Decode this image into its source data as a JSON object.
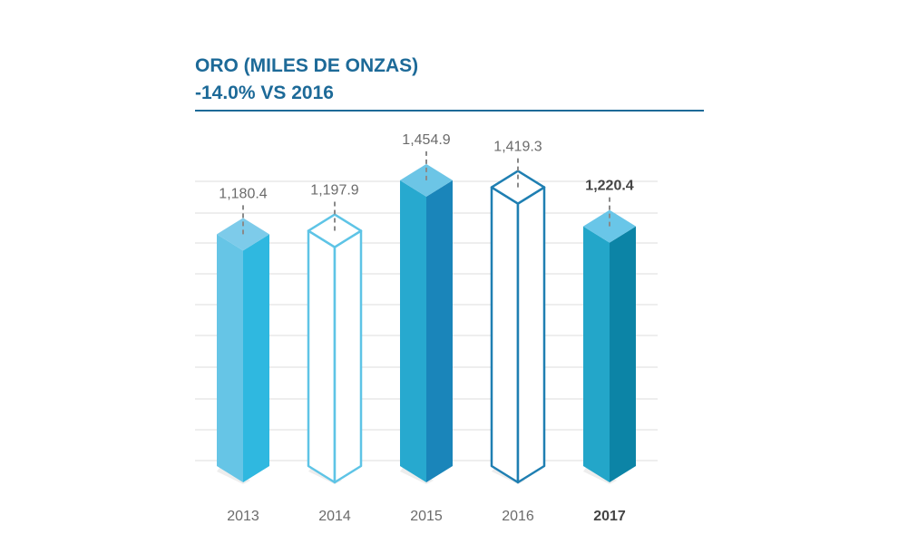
{
  "header": {
    "title": "ORO (MILES DE ONZAS)",
    "subtitle": "-14.0% VS 2016"
  },
  "colors": {
    "title": "#1d6a98",
    "rule": "#1d6a98",
    "gridline": "#dcdcdc",
    "leader": "#8a8a8a"
  },
  "chart_data": {
    "type": "bar",
    "style": "3d-prism",
    "title": "ORO (MILES DE ONZAS)",
    "subtitle": "-14.0% VS 2016",
    "categories": [
      "2013",
      "2014",
      "2015",
      "2016",
      "2017"
    ],
    "values": [
      1180.4,
      1197.9,
      1454.9,
      1419.3,
      1220.4
    ],
    "value_labels": [
      "1,180.4",
      "1,197.9",
      "1,454.9",
      "1,419.3",
      "1,220.4"
    ],
    "highlight_category": "2017",
    "ylim": [
      0,
      1600
    ],
    "grid": true,
    "xlabel": "",
    "ylabel": "",
    "bars": [
      {
        "fill": "solid",
        "top": "#7dcbea",
        "left": "#66c5e6",
        "right": "#2fb8e0"
      },
      {
        "fill": "outline",
        "stroke": "#5ec4e6"
      },
      {
        "fill": "solid",
        "top": "#6cc5e6",
        "left": "#27a9cf",
        "right": "#1a85ba"
      },
      {
        "fill": "outline",
        "stroke": "#1f7fb2"
      },
      {
        "fill": "solid",
        "top": "#69c6e8",
        "left": "#23a6c9",
        "right": "#0c84a6"
      }
    ]
  }
}
